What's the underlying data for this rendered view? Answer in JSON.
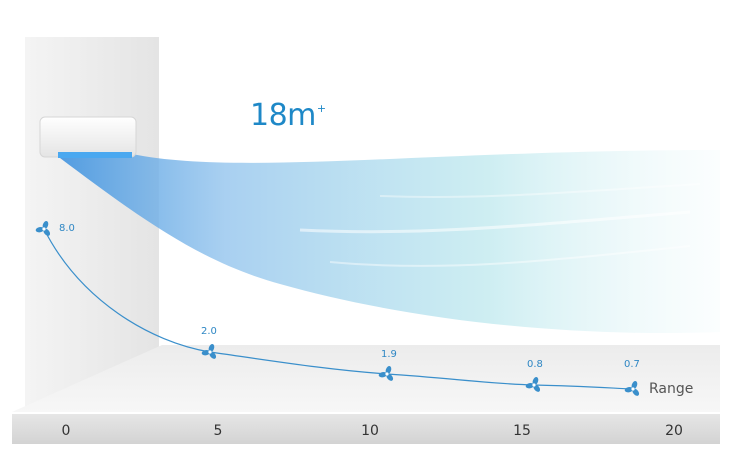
{
  "headline": {
    "value": "18m",
    "suffix": "+"
  },
  "range_label": "Range",
  "ruler_ticks": [
    "0",
    "5",
    "10",
    "15",
    "20"
  ],
  "fan_points": [
    {
      "label": "8.0"
    },
    {
      "label": "2.0"
    },
    {
      "label": "1.9"
    },
    {
      "label": "0.8"
    },
    {
      "label": "0.7"
    }
  ],
  "colors": {
    "accent": "#1e88c7",
    "curve": "#3a8fcb",
    "wall": "#eeeeee",
    "floor": "#efefef"
  },
  "icons": {
    "fan": "fan-icon"
  }
}
